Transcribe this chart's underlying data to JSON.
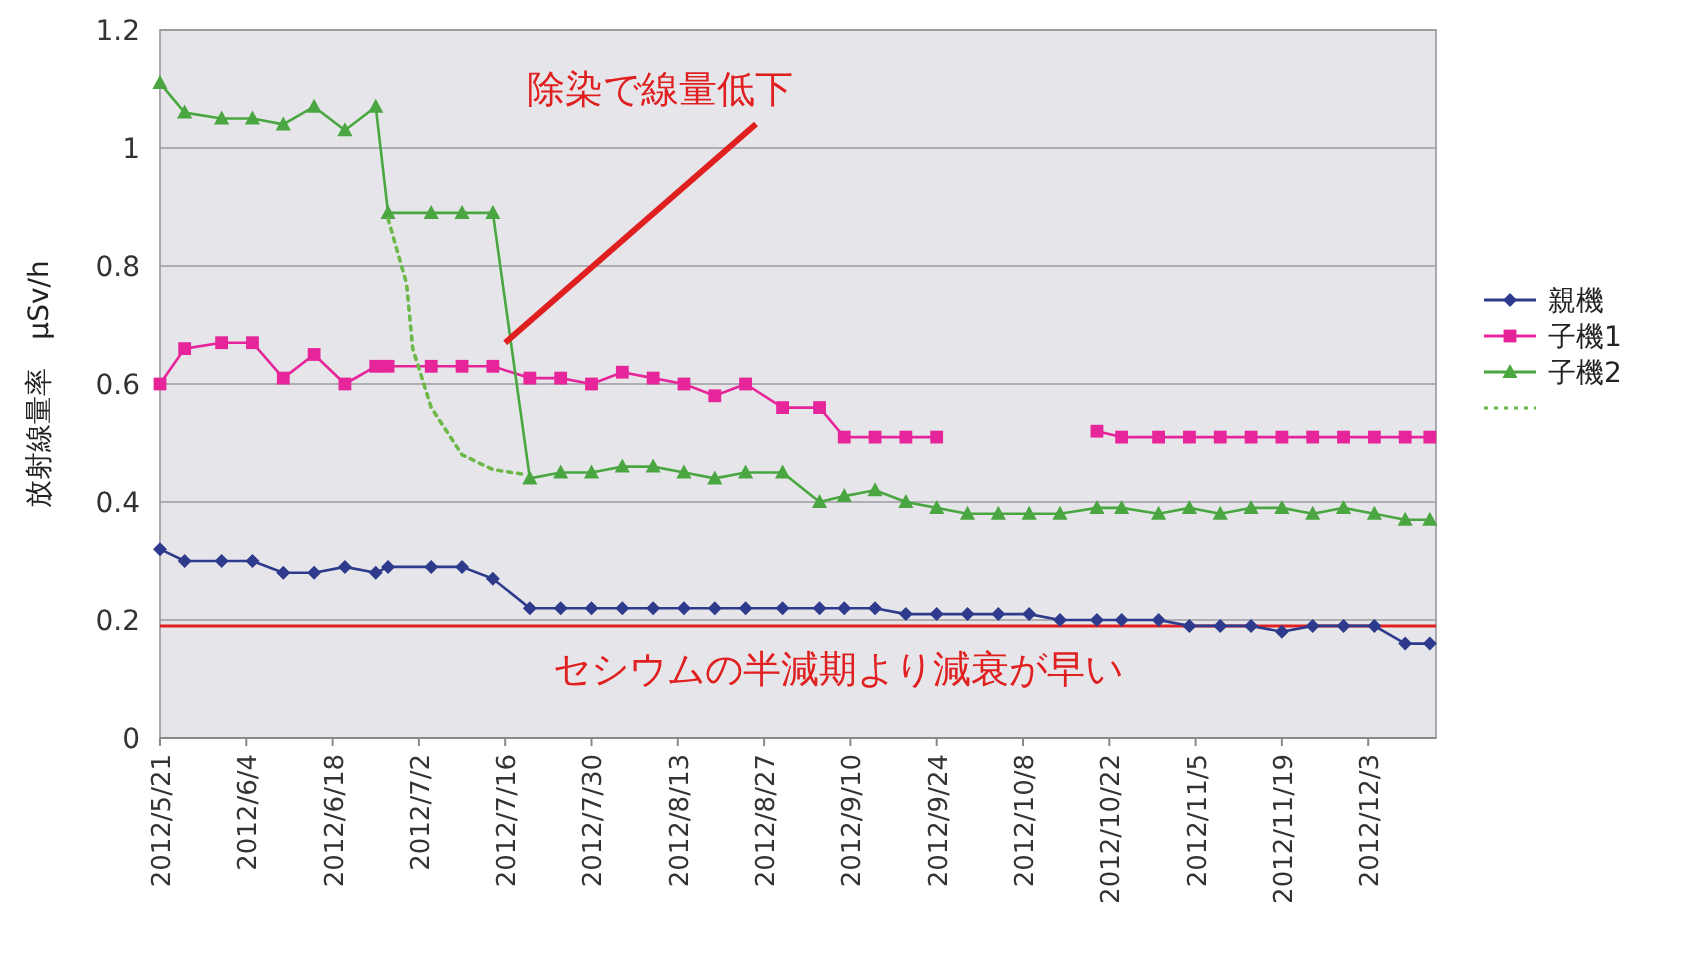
{
  "chart_data": {
    "type": "line",
    "ylabel": "放射線量率　μSv/h",
    "x": [
      "2012-05-21",
      "2012-05-25",
      "2012-05-31",
      "2012-06-05",
      "2012-06-10",
      "2012-06-15",
      "2012-06-20",
      "2012-06-25",
      "2012-06-27",
      "2012-07-04",
      "2012-07-09",
      "2012-07-14",
      "2012-07-20",
      "2012-07-25",
      "2012-07-30",
      "2012-08-04",
      "2012-08-09",
      "2012-08-14",
      "2012-08-19",
      "2012-08-24",
      "2012-08-30",
      "2012-09-05",
      "2012-09-09",
      "2012-09-14",
      "2012-09-19",
      "2012-09-24",
      "2012-09-29",
      "2012-10-04",
      "2012-10-09",
      "2012-10-14",
      "2012-10-20",
      "2012-10-24",
      "2012-10-30",
      "2012-11-04",
      "2012-11-09",
      "2012-11-14",
      "2012-11-19",
      "2012-11-24",
      "2012-11-29",
      "2012-12-04",
      "2012-12-09",
      "2012-12-13"
    ],
    "series": [
      {
        "name": "親機",
        "color": "#2e3a8c",
        "marker": "diamond",
        "values": [
          0.32,
          0.3,
          0.3,
          0.3,
          0.28,
          0.28,
          0.29,
          0.28,
          0.29,
          0.29,
          0.29,
          0.27,
          0.22,
          0.22,
          0.22,
          0.22,
          0.22,
          0.22,
          0.22,
          0.22,
          0.22,
          0.22,
          0.22,
          0.22,
          0.21,
          0.21,
          0.21,
          0.21,
          0.21,
          0.2,
          0.2,
          0.2,
          0.2,
          0.19,
          0.19,
          0.19,
          0.18,
          0.19,
          0.19,
          0.19,
          0.16,
          0.16
        ]
      },
      {
        "name": "子機1",
        "color": "#e6259a",
        "marker": "square",
        "values": [
          0.6,
          0.66,
          0.67,
          0.67,
          0.61,
          0.65,
          0.6,
          0.63,
          0.63,
          0.63,
          0.63,
          0.63,
          0.61,
          0.61,
          0.6,
          0.62,
          0.61,
          0.6,
          0.58,
          0.6,
          0.56,
          0.56,
          0.51,
          0.51,
          0.51,
          0.51,
          null,
          null,
          null,
          null,
          0.52,
          0.51,
          0.51,
          0.51,
          0.51,
          0.51,
          0.51,
          0.51,
          0.51,
          0.51,
          0.51,
          0.51
        ]
      },
      {
        "name": "子機2",
        "color": "#4aa640",
        "marker": "triangle",
        "values": [
          1.11,
          1.06,
          1.05,
          1.05,
          1.04,
          1.07,
          1.03,
          1.07,
          0.89,
          0.89,
          0.89,
          0.89,
          0.44,
          0.45,
          0.45,
          0.46,
          0.46,
          0.45,
          0.44,
          0.45,
          0.45,
          0.4,
          0.41,
          0.42,
          0.4,
          0.39,
          0.38,
          0.38,
          0.38,
          0.38,
          0.39,
          0.39,
          0.38,
          0.39,
          0.38,
          0.39,
          0.39,
          0.38,
          0.39,
          0.38,
          0.37,
          0.37
        ]
      },
      {
        "color": "#6cb84a",
        "marker": "none",
        "line_style": "dotted",
        "x": [
          "2012-06-27",
          "2012-06-30",
          "2012-07-01",
          "2012-07-04",
          "2012-07-09",
          "2012-07-14",
          "2012-07-19"
        ],
        "values": [
          0.88,
          0.77,
          0.66,
          0.56,
          0.48,
          0.455,
          0.447
        ]
      }
    ],
    "xlim": [
      "2012-05-21",
      "2012-12-14"
    ],
    "xticks": [
      {
        "value": "2012-05-21",
        "label": "2012/5/21"
      },
      {
        "value": "2012-06-04",
        "label": "2012/6/4"
      },
      {
        "value": "2012-06-18",
        "label": "2012/6/18"
      },
      {
        "value": "2012-07-02",
        "label": "2012/7/2"
      },
      {
        "value": "2012-07-16",
        "label": "2012/7/16"
      },
      {
        "value": "2012-07-30",
        "label": "2012/7/30"
      },
      {
        "value": "2012-08-13",
        "label": "2012/8/13"
      },
      {
        "value": "2012-08-27",
        "label": "2012/8/27"
      },
      {
        "value": "2012-09-10",
        "label": "2012/9/10"
      },
      {
        "value": "2012-09-24",
        "label": "2012/9/24"
      },
      {
        "value": "2012-10-08",
        "label": "2012/10/8"
      },
      {
        "value": "2012-10-22",
        "label": "2012/10/22"
      },
      {
        "value": "2012-11-05",
        "label": "2012/11/5"
      },
      {
        "value": "2012-11-19",
        "label": "2012/11/19"
      },
      {
        "value": "2012-12-03",
        "label": "2012/12/3"
      }
    ],
    "ylim": [
      0,
      1.2
    ],
    "yticks": [
      0,
      0.2,
      0.4,
      0.6,
      0.8,
      1,
      1.2
    ],
    "grid": "y",
    "legend": "right",
    "ref_lines": [
      {
        "axis": "y",
        "value": 0.19,
        "color": "#e02020",
        "label": "セシウムの半減期より減衰が早い"
      }
    ],
    "annotations": [
      {
        "text": "除染で線量低下",
        "x": "2012-07-16",
        "y": 0.67
      }
    ]
  }
}
